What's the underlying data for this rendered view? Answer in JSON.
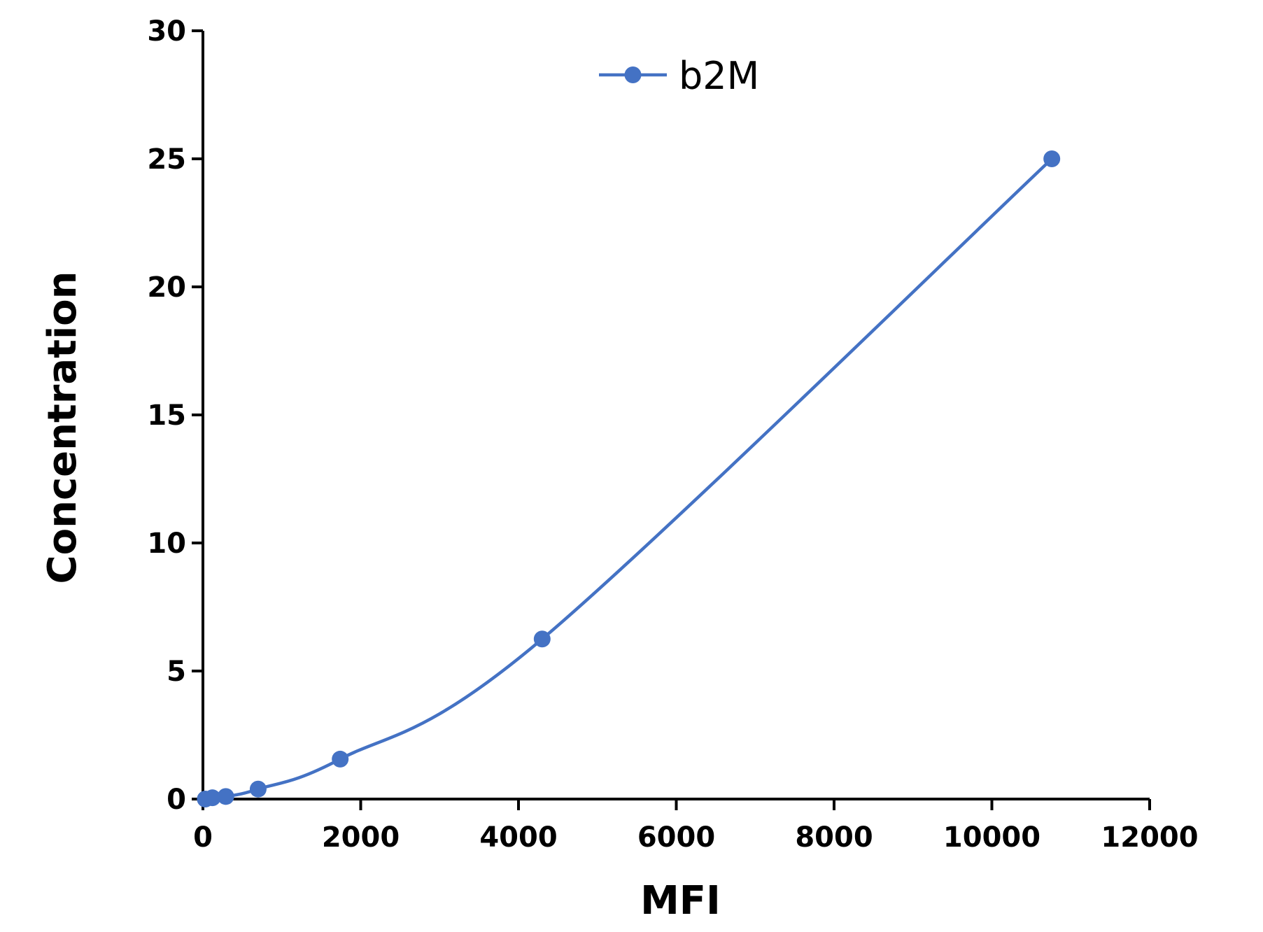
{
  "chart_data": {
    "type": "line",
    "title": "",
    "xlabel": "MFI",
    "ylabel": "Concentration",
    "xlim": [
      0,
      12000
    ],
    "ylim": [
      0,
      30
    ],
    "x_ticks": [
      0,
      2000,
      4000,
      6000,
      8000,
      10000,
      12000
    ],
    "y_ticks": [
      0,
      5,
      10,
      15,
      20,
      25,
      30
    ],
    "x_tick_labels": [
      "0",
      "2000",
      "4000",
      "6000",
      "8000",
      "10000",
      "12000"
    ],
    "y_tick_labels": [
      "0",
      "5",
      "10",
      "15",
      "20",
      "25",
      "30"
    ],
    "grid": false,
    "legend_position": "top-center",
    "series": [
      {
        "name": "b2M",
        "color": "#4472C4",
        "smooth": true,
        "points": [
          {
            "x": 30,
            "y": 0
          },
          {
            "x": 120,
            "y": 0.05
          },
          {
            "x": 290,
            "y": 0.1
          },
          {
            "x": 700,
            "y": 0.39
          },
          {
            "x": 1740,
            "y": 1.56
          },
          {
            "x": 4300,
            "y": 6.25
          },
          {
            "x": 10760,
            "y": 25
          }
        ]
      }
    ]
  }
}
